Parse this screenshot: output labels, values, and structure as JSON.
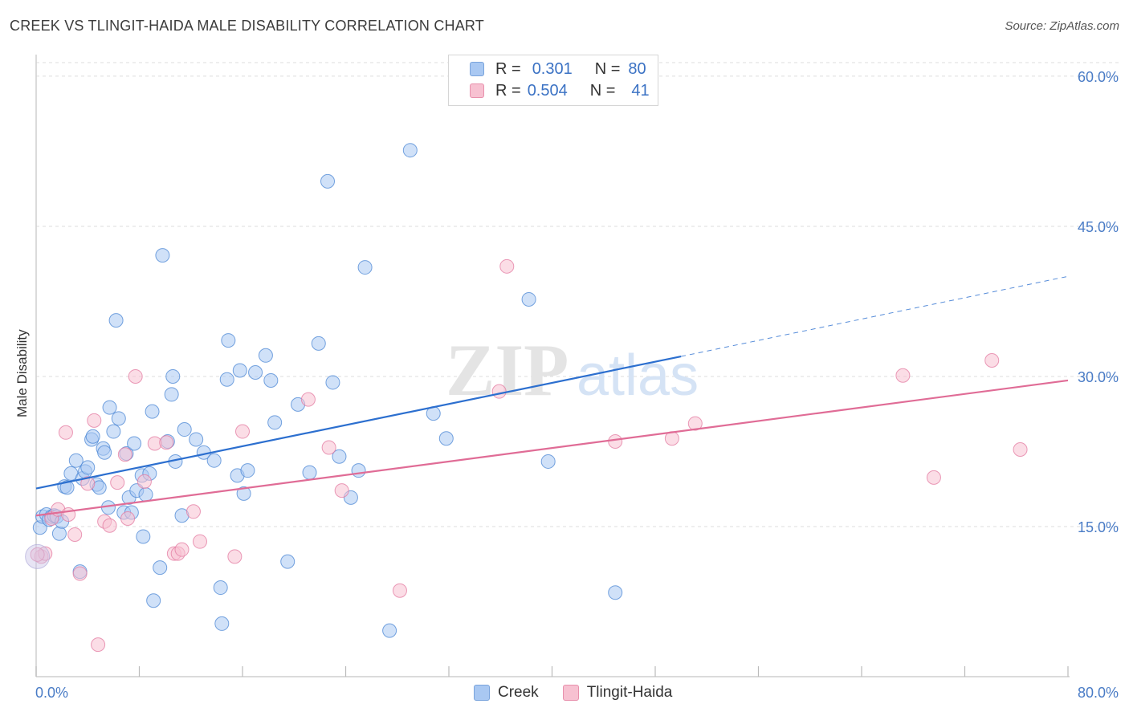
{
  "title": "CREEK VS TLINGIT-HAIDA MALE DISABILITY CORRELATION CHART",
  "source": "Source: ZipAtlas.com",
  "watermark": {
    "zip": "ZIP",
    "atlas": "atlas"
  },
  "stats": [
    {
      "r_label": "R =",
      "r_value": "0.301",
      "n_label": "N =",
      "n_value": "80",
      "color": "#a9c8f2",
      "border": "#7aa4dc"
    },
    {
      "r_label": "R =",
      "r_value": "0.504",
      "n_label": "N =",
      "n_value": "41",
      "color": "#f7c1d1",
      "border": "#e890ac"
    }
  ],
  "legend": [
    {
      "label": "Creek",
      "color": "#a9c8f2",
      "border": "#7aa4dc"
    },
    {
      "label": "Tlingit-Haida",
      "color": "#f7c1d1",
      "border": "#e890ac"
    }
  ],
  "chart_data": {
    "type": "scatter",
    "title": "CREEK VS TLINGIT-HAIDA MALE DISABILITY CORRELATION CHART",
    "xlabel": "",
    "ylabel": "Male Disability",
    "xlim": [
      0,
      80
    ],
    "ylim": [
      0,
      62
    ],
    "x_tick_labels": {
      "min": "0.0%",
      "max": "80.0%"
    },
    "y_ticks": [
      15,
      30,
      45,
      60
    ],
    "y_tick_labels": [
      "15.0%",
      "30.0%",
      "45.0%",
      "60.0%"
    ],
    "grid": true,
    "legend": "bottom-center",
    "series": [
      {
        "name": "Creek",
        "color": "#4a86d4",
        "fill": "#a9c8f2",
        "trend": {
          "x0": 0,
          "y0": 18.8,
          "x1": 50,
          "y1": 32.0,
          "dash_to_x": 80,
          "dash_to_y": 40.0,
          "color": "#2c6fcf"
        },
        "points": [
          [
            0.3,
            14.9
          ],
          [
            0.5,
            16.0
          ],
          [
            0.8,
            16.2
          ],
          [
            1.0,
            15.7
          ],
          [
            1.2,
            16.0
          ],
          [
            1.4,
            16.1
          ],
          [
            1.6,
            16.0
          ],
          [
            1.8,
            14.3
          ],
          [
            2.0,
            15.5
          ],
          [
            2.2,
            19.0
          ],
          [
            2.4,
            18.9
          ],
          [
            2.7,
            20.3
          ],
          [
            3.1,
            21.6
          ],
          [
            3.4,
            10.5
          ],
          [
            3.6,
            19.8
          ],
          [
            3.8,
            20.5
          ],
          [
            4.0,
            20.9
          ],
          [
            4.3,
            23.7
          ],
          [
            4.4,
            24.0
          ],
          [
            4.7,
            19.2
          ],
          [
            4.9,
            18.9
          ],
          [
            5.2,
            22.8
          ],
          [
            5.3,
            22.4
          ],
          [
            5.6,
            16.9
          ],
          [
            5.7,
            26.9
          ],
          [
            6.0,
            24.5
          ],
          [
            6.2,
            35.6
          ],
          [
            6.4,
            25.8
          ],
          [
            6.8,
            16.4
          ],
          [
            7.0,
            22.3
          ],
          [
            7.2,
            17.9
          ],
          [
            7.4,
            16.4
          ],
          [
            7.6,
            23.3
          ],
          [
            7.8,
            18.6
          ],
          [
            8.2,
            20.1
          ],
          [
            8.3,
            14.0
          ],
          [
            8.5,
            18.2
          ],
          [
            8.8,
            20.3
          ],
          [
            9.0,
            26.5
          ],
          [
            9.1,
            7.6
          ],
          [
            9.6,
            10.9
          ],
          [
            9.8,
            42.1
          ],
          [
            10.2,
            23.5
          ],
          [
            10.5,
            28.2
          ],
          [
            10.6,
            30.0
          ],
          [
            10.8,
            21.5
          ],
          [
            11.3,
            16.1
          ],
          [
            11.5,
            24.7
          ],
          [
            12.4,
            23.7
          ],
          [
            13.0,
            22.4
          ],
          [
            13.8,
            21.6
          ],
          [
            14.3,
            8.9
          ],
          [
            14.4,
            5.3
          ],
          [
            14.8,
            29.7
          ],
          [
            14.9,
            33.6
          ],
          [
            15.6,
            20.1
          ],
          [
            15.8,
            30.6
          ],
          [
            16.1,
            18.3
          ],
          [
            16.4,
            20.6
          ],
          [
            17.0,
            30.4
          ],
          [
            17.8,
            32.1
          ],
          [
            18.2,
            29.6
          ],
          [
            18.5,
            25.4
          ],
          [
            19.5,
            11.5
          ],
          [
            20.3,
            27.2
          ],
          [
            21.2,
            20.4
          ],
          [
            21.9,
            33.3
          ],
          [
            22.6,
            49.5
          ],
          [
            23.0,
            29.4
          ],
          [
            23.5,
            22.0
          ],
          [
            24.4,
            17.9
          ],
          [
            25.0,
            20.6
          ],
          [
            25.5,
            40.9
          ],
          [
            27.4,
            4.6
          ],
          [
            29.0,
            52.6
          ],
          [
            30.8,
            26.3
          ],
          [
            31.8,
            23.8
          ],
          [
            38.2,
            37.7
          ],
          [
            39.7,
            21.5
          ],
          [
            44.9,
            8.4
          ]
        ]
      },
      {
        "name": "Tlingit-Haida",
        "color": "#e37aa0",
        "fill": "#f7c1d1",
        "trend": {
          "x0": 0,
          "y0": 16.1,
          "x1": 80,
          "y1": 29.6,
          "color": "#e06c96"
        },
        "points": [
          [
            0.4,
            12.0
          ],
          [
            0.7,
            12.3
          ],
          [
            1.2,
            15.8
          ],
          [
            1.7,
            16.7
          ],
          [
            2.3,
            24.4
          ],
          [
            2.5,
            16.2
          ],
          [
            3.0,
            14.2
          ],
          [
            3.4,
            10.3
          ],
          [
            4.0,
            19.3
          ],
          [
            4.5,
            25.6
          ],
          [
            4.8,
            3.2
          ],
          [
            5.3,
            15.5
          ],
          [
            5.7,
            15.1
          ],
          [
            6.3,
            19.4
          ],
          [
            6.9,
            22.2
          ],
          [
            7.1,
            15.8
          ],
          [
            7.7,
            30.0
          ],
          [
            8.4,
            19.5
          ],
          [
            9.2,
            23.3
          ],
          [
            10.1,
            23.4
          ],
          [
            10.7,
            12.3
          ],
          [
            11.0,
            12.3
          ],
          [
            11.3,
            12.7
          ],
          [
            12.2,
            16.5
          ],
          [
            12.7,
            13.5
          ],
          [
            15.4,
            12.0
          ],
          [
            16.0,
            24.5
          ],
          [
            21.1,
            27.7
          ],
          [
            22.7,
            22.9
          ],
          [
            23.7,
            18.6
          ],
          [
            28.2,
            8.6
          ],
          [
            35.9,
            28.5
          ],
          [
            36.5,
            41.0
          ],
          [
            44.9,
            23.5
          ],
          [
            49.3,
            23.8
          ],
          [
            51.1,
            25.3
          ],
          [
            67.2,
            30.1
          ],
          [
            69.6,
            19.9
          ],
          [
            74.1,
            31.6
          ],
          [
            76.3,
            22.7
          ],
          [
            0.1,
            12.2
          ]
        ]
      }
    ]
  }
}
